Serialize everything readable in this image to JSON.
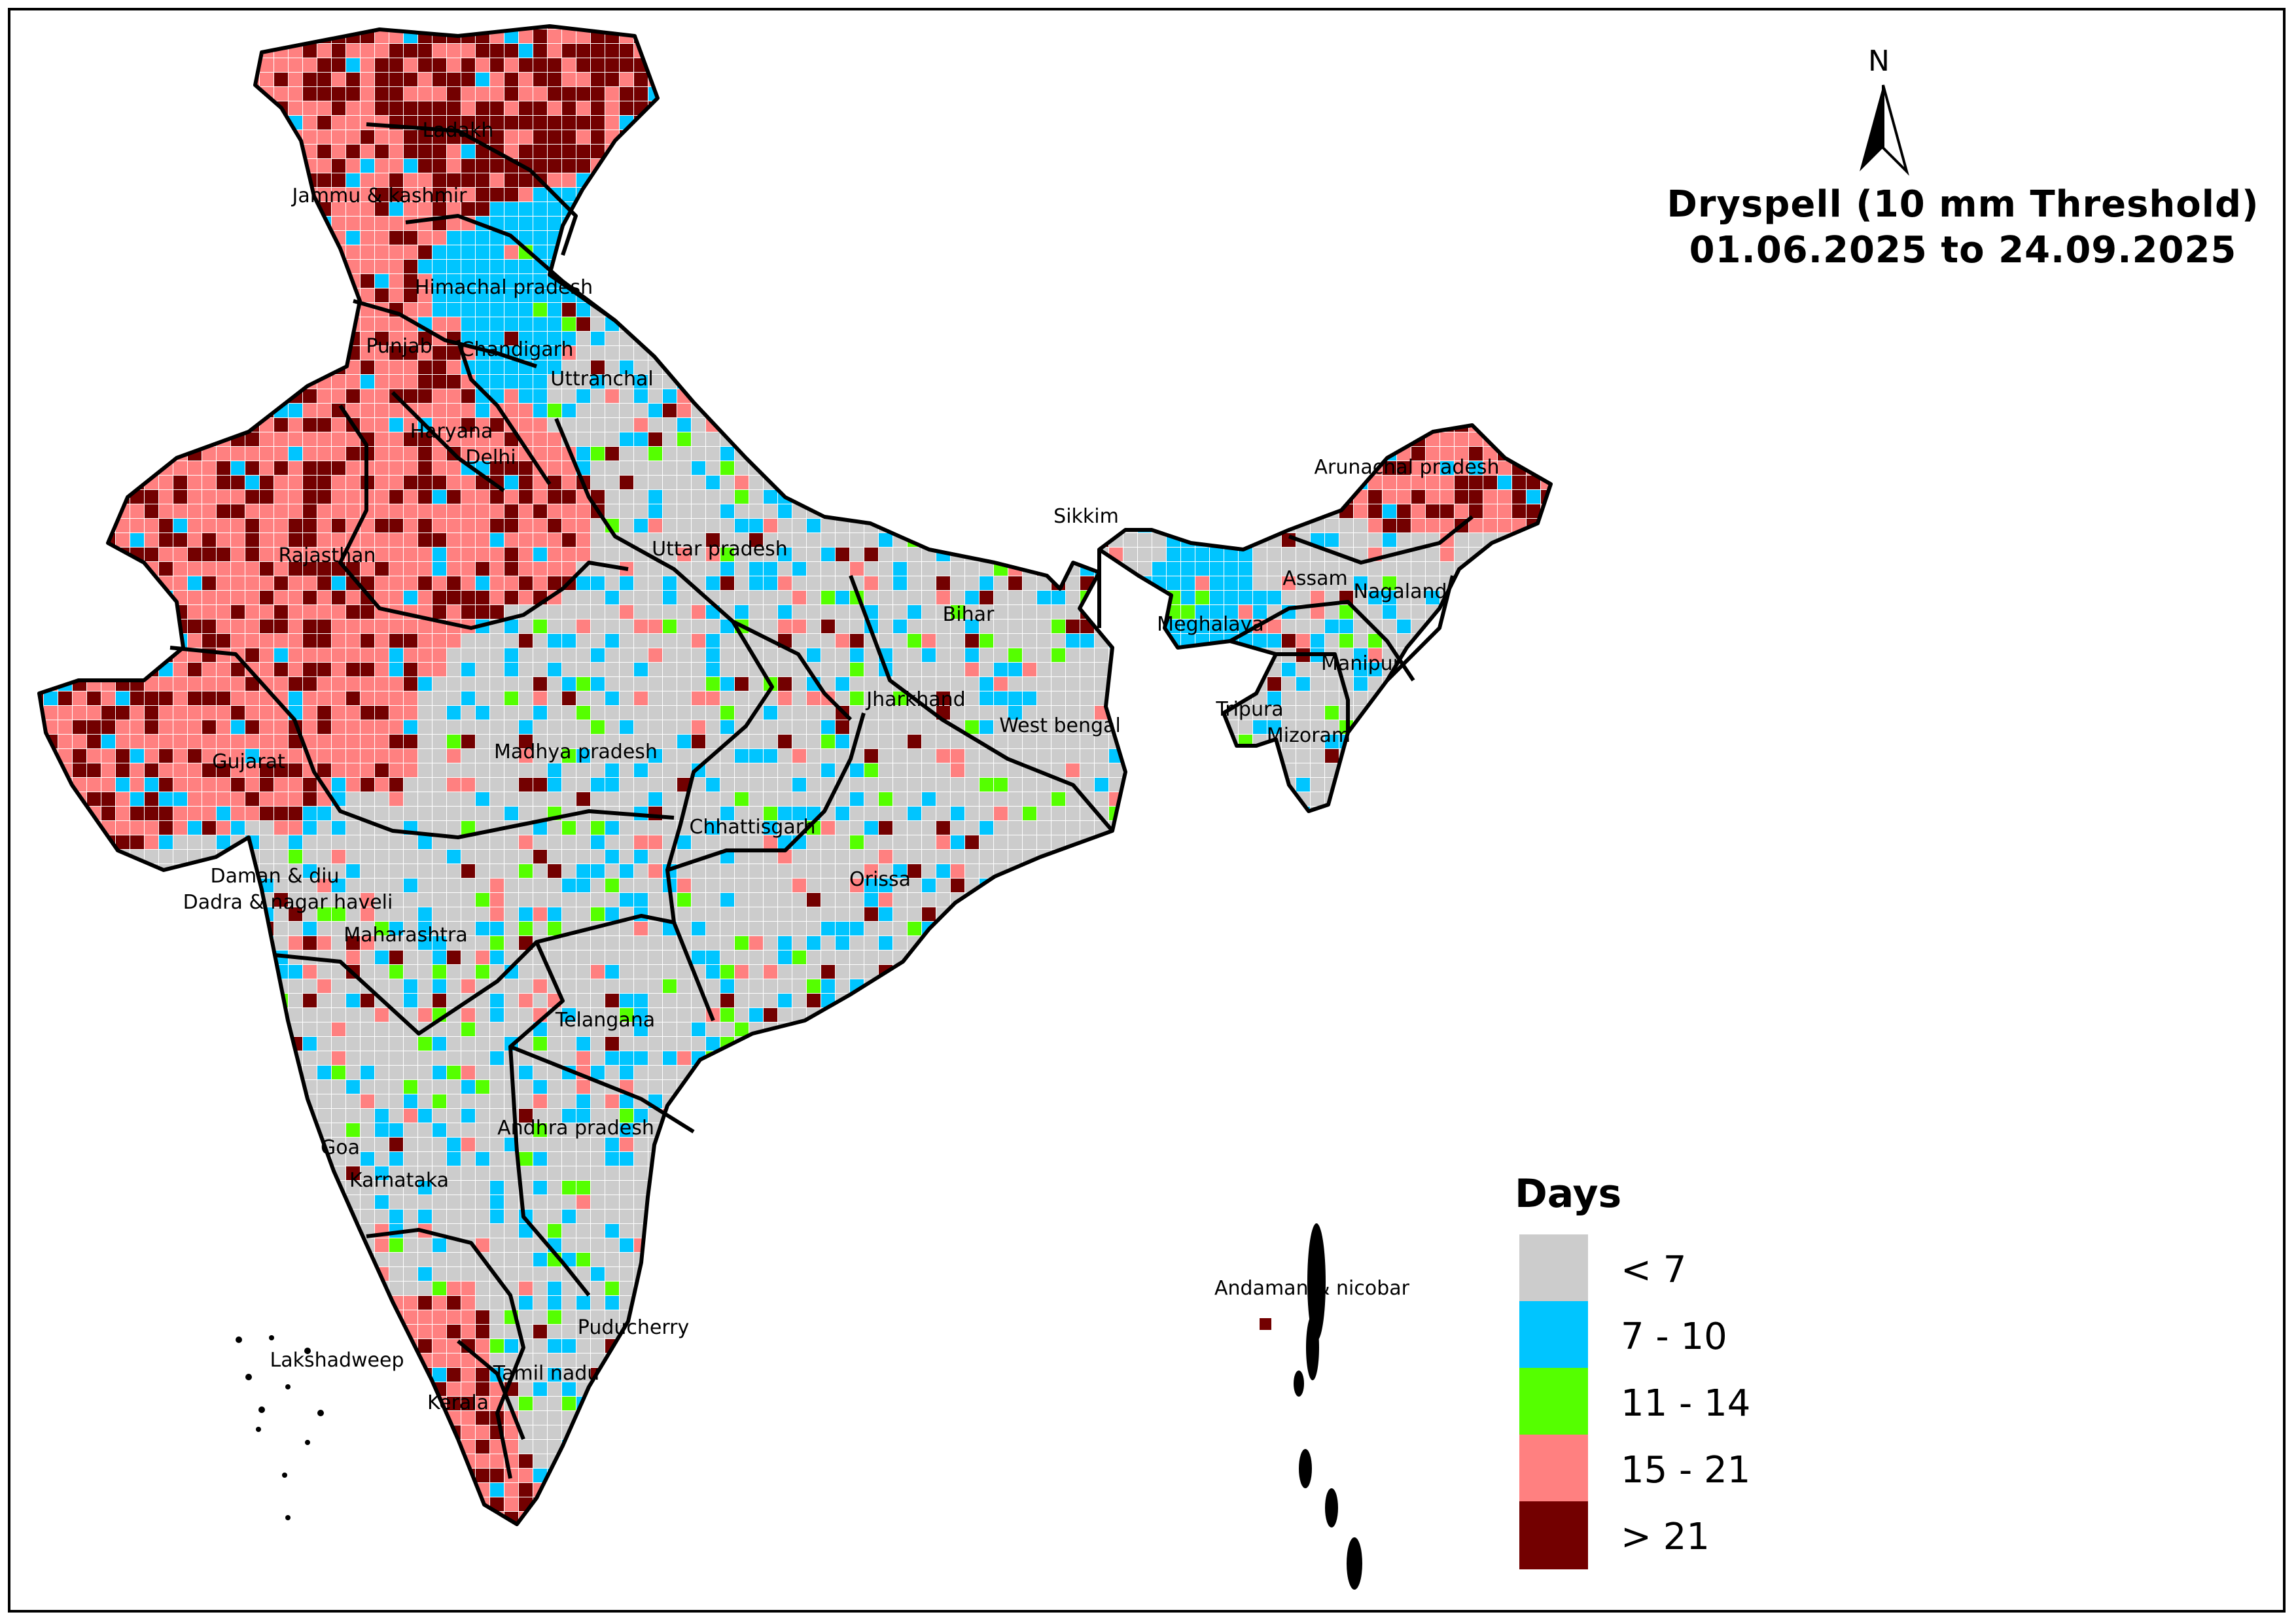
{
  "title": {
    "line1": "Dryspell (10 mm Threshold)",
    "line2": "01.06.2025 to 24.09.2025"
  },
  "north_arrow": {
    "letter": "N"
  },
  "legend": {
    "title": "Days",
    "classes": [
      {
        "label": "< 7",
        "color": "#cccccc"
      },
      {
        "label": "7 - 10",
        "color": "#00c5ff"
      },
      {
        "label": "11 - 14",
        "color": "#55ff00"
      },
      {
        "label": "15 - 21",
        "color": "#ff8080"
      },
      {
        "label": "> 21",
        "color": "#730000"
      }
    ]
  },
  "regions": [
    {
      "id": "ladakh",
      "label": "Ladakh",
      "dominant_class": 4
    },
    {
      "id": "jk",
      "label": "Jammu & kashmir",
      "dominant_class": 3
    },
    {
      "id": "hp",
      "label": "Himachal pradesh",
      "dominant_class": 1
    },
    {
      "id": "punjab",
      "label": "Punjab",
      "dominant_class": 3
    },
    {
      "id": "chandigarh",
      "label": "Chandigarh",
      "dominant_class": 1
    },
    {
      "id": "uttranchal",
      "label": "Uttranchal",
      "dominant_class": 0
    },
    {
      "id": "haryana",
      "label": "Haryana",
      "dominant_class": 3
    },
    {
      "id": "delhi",
      "label": "Delhi",
      "dominant_class": 3
    },
    {
      "id": "rajasthan",
      "label": "Rajasthan",
      "dominant_class": 3
    },
    {
      "id": "up",
      "label": "Uttar pradesh",
      "dominant_class": 0
    },
    {
      "id": "bihar",
      "label": "Bihar",
      "dominant_class": 0
    },
    {
      "id": "sikkim",
      "label": "Sikkim",
      "dominant_class": 0
    },
    {
      "id": "arunachal",
      "label": "Arunachal pradesh",
      "dominant_class": 3
    },
    {
      "id": "assam",
      "label": "Assam",
      "dominant_class": 0
    },
    {
      "id": "nagaland",
      "label": "Nagaland",
      "dominant_class": 0
    },
    {
      "id": "meghalaya",
      "label": "Meghalaya",
      "dominant_class": 1
    },
    {
      "id": "manipur",
      "label": "Manipur",
      "dominant_class": 0
    },
    {
      "id": "tripura",
      "label": "Tripura",
      "dominant_class": 0
    },
    {
      "id": "mizoram",
      "label": "Mizoram",
      "dominant_class": 0
    },
    {
      "id": "jharkhand",
      "label": "Jharkhand",
      "dominant_class": 0
    },
    {
      "id": "wb",
      "label": "West bengal",
      "dominant_class": 0
    },
    {
      "id": "gujarat",
      "label": "Gujarat",
      "dominant_class": 3
    },
    {
      "id": "mp",
      "label": "Madhya pradesh",
      "dominant_class": 0
    },
    {
      "id": "chhattisgarh",
      "label": "Chhattisgarh",
      "dominant_class": 0
    },
    {
      "id": "orissa",
      "label": "Orissa",
      "dominant_class": 0
    },
    {
      "id": "daman",
      "label": "Daman & diu",
      "dominant_class": 0
    },
    {
      "id": "dnh",
      "label": "Dadra & nagar haveli",
      "dominant_class": 0
    },
    {
      "id": "maharashtra",
      "label": "Maharashtra",
      "dominant_class": 0
    },
    {
      "id": "telangana",
      "label": "Telangana",
      "dominant_class": 0
    },
    {
      "id": "ap",
      "label": "Andhra pradesh",
      "dominant_class": 0
    },
    {
      "id": "goa",
      "label": "Goa",
      "dominant_class": 0
    },
    {
      "id": "karnataka",
      "label": "Karnataka",
      "dominant_class": 0
    },
    {
      "id": "puducherry",
      "label": "Puducherry",
      "dominant_class": 0
    },
    {
      "id": "lakshadweep",
      "label": "Lakshadweep",
      "dominant_class": 0
    },
    {
      "id": "tn",
      "label": "Tamil nadu",
      "dominant_class": 0
    },
    {
      "id": "kerala",
      "label": "Kerala",
      "dominant_class": 3
    },
    {
      "id": "andaman",
      "label": "Andaman & nicobar",
      "dominant_class": 0
    }
  ]
}
